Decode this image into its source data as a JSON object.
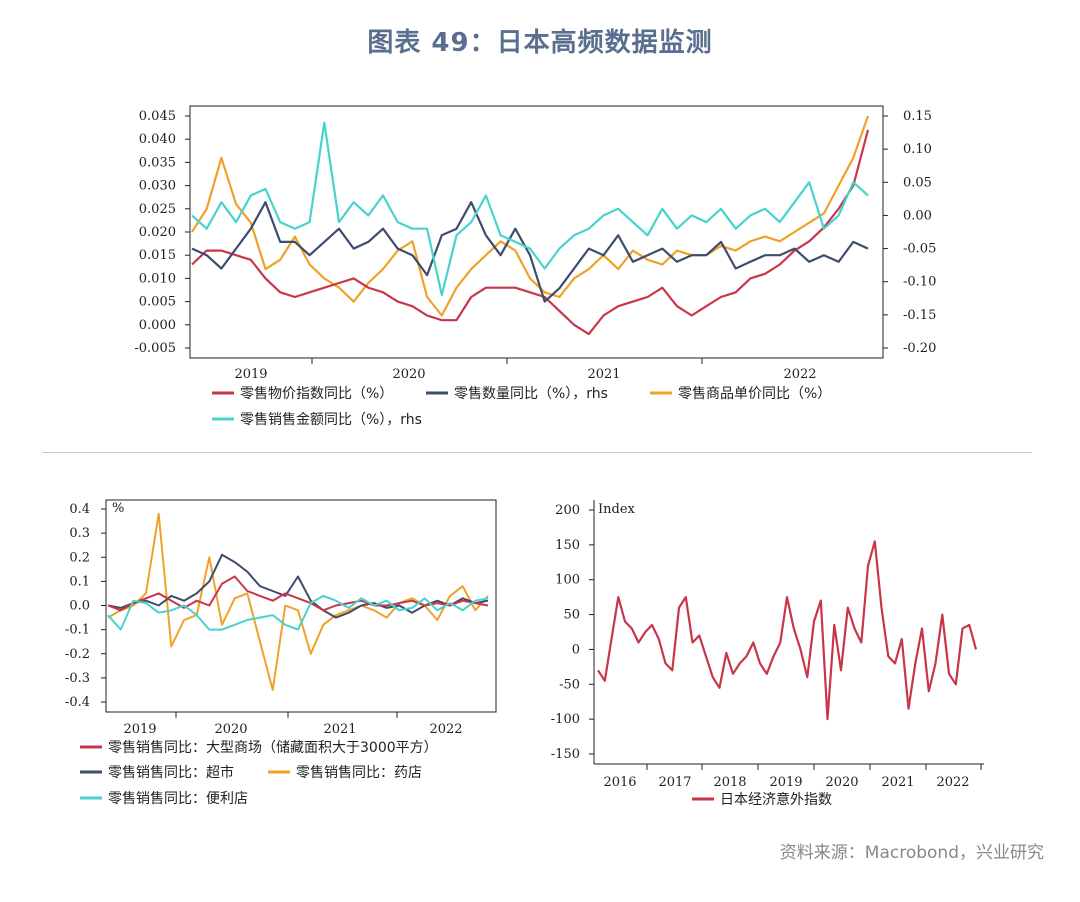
{
  "title": "图表 49：日本高频数据监测",
  "source": "资料来源：Macrobond，兴业研究",
  "colors": {
    "red": "#c8364a",
    "navy": "#3e4d6e",
    "orange": "#f0a12a",
    "cyan": "#47d3cc"
  },
  "chart_data": [
    {
      "type": "line",
      "x_ticks": [
        "2019",
        "2020",
        "2021",
        "2022"
      ],
      "y_left_ticks": [
        "0.045",
        "0.040",
        "0.035",
        "0.030",
        "0.025",
        "0.020",
        "0.015",
        "0.010",
        "0.005",
        "0.000",
        "-0.005"
      ],
      "y_right_ticks": [
        "0.15",
        "0.10",
        "0.05",
        "0.00",
        "-0.05",
        "-0.10",
        "-0.15",
        "-0.20"
      ],
      "ylim_left": [
        -0.005,
        0.045
      ],
      "ylim_right": [
        -0.2,
        0.15
      ],
      "legend": [
        "零售物价指数同比（%）",
        "零售数量同比（%），rhs",
        "零售商品单价同比（%）",
        "零售销售金额同比（%），rhs"
      ],
      "series": [
        {
          "name": "零售物价指数同比（%）",
          "axis": "left",
          "color": "red",
          "values": [
            0.013,
            0.016,
            0.016,
            0.015,
            0.014,
            0.01,
            0.007,
            0.006,
            0.007,
            0.008,
            0.009,
            0.01,
            0.008,
            0.007,
            0.005,
            0.004,
            0.002,
            0.001,
            0.001,
            0.006,
            0.008,
            0.008,
            0.008,
            0.007,
            0.006,
            0.003,
            0.0,
            -0.002,
            0.002,
            0.004,
            0.005,
            0.006,
            0.008,
            0.004,
            0.002,
            0.004,
            0.006,
            0.007,
            0.01,
            0.011,
            0.013,
            0.016,
            0.018,
            0.021,
            0.025,
            0.03,
            0.042
          ]
        },
        {
          "name": "零售数量同比（%），rhs",
          "axis": "right",
          "color": "navy",
          "values": [
            -0.05,
            -0.06,
            -0.08,
            -0.05,
            -0.02,
            0.02,
            -0.04,
            -0.04,
            -0.06,
            -0.04,
            -0.02,
            -0.05,
            -0.04,
            -0.02,
            -0.05,
            -0.06,
            -0.09,
            -0.03,
            -0.02,
            0.02,
            -0.03,
            -0.06,
            -0.02,
            -0.06,
            -0.13,
            -0.11,
            -0.08,
            -0.05,
            -0.06,
            -0.03,
            -0.07,
            -0.06,
            -0.05,
            -0.07,
            -0.06,
            -0.06,
            -0.04,
            -0.08,
            -0.07,
            -0.06,
            -0.06,
            -0.05,
            -0.07,
            -0.06,
            -0.07,
            -0.04,
            -0.05
          ]
        },
        {
          "name": "零售商品单价同比（%）",
          "axis": "left",
          "color": "orange",
          "values": [
            0.02,
            0.025,
            0.036,
            0.026,
            0.022,
            0.012,
            0.014,
            0.019,
            0.013,
            0.01,
            0.008,
            0.005,
            0.009,
            0.012,
            0.016,
            0.018,
            0.006,
            0.002,
            0.008,
            0.012,
            0.015,
            0.018,
            0.016,
            0.01,
            0.007,
            0.006,
            0.01,
            0.012,
            0.015,
            0.012,
            0.016,
            0.014,
            0.013,
            0.016,
            0.015,
            0.015,
            0.017,
            0.016,
            0.018,
            0.019,
            0.018,
            0.02,
            0.022,
            0.024,
            0.03,
            0.036,
            0.045
          ]
        },
        {
          "name": "零售销售金额同比（%），rhs",
          "axis": "right",
          "color": "cyan",
          "values": [
            0.0,
            -0.02,
            0.02,
            -0.01,
            0.03,
            0.04,
            -0.01,
            -0.02,
            -0.01,
            0.14,
            -0.01,
            0.02,
            0.0,
            0.03,
            -0.01,
            -0.02,
            -0.02,
            -0.12,
            -0.03,
            -0.01,
            0.03,
            -0.03,
            -0.04,
            -0.05,
            -0.08,
            -0.05,
            -0.03,
            -0.02,
            0.0,
            0.01,
            -0.01,
            -0.03,
            0.01,
            -0.02,
            0.0,
            -0.01,
            0.01,
            -0.02,
            0.0,
            0.01,
            -0.01,
            0.02,
            0.05,
            -0.02,
            0.0,
            0.05,
            0.03
          ]
        }
      ]
    },
    {
      "type": "line",
      "unit_label": "%",
      "x_ticks": [
        "2019",
        "2020",
        "2021",
        "2022"
      ],
      "y_ticks": [
        "0.4",
        "0.3",
        "0.2",
        "0.1",
        "0.0",
        "-0.1",
        "-0.2",
        "-0.3",
        "-0.4"
      ],
      "ylim": [
        -0.4,
        0.4
      ],
      "legend": [
        "零售销售同比：大型商场（储藏面积大于3000平方）",
        "零售销售同比：超市",
        "零售销售同比：药店",
        "零售销售同比：便利店"
      ],
      "series": [
        {
          "name": "零售销售同比：大型商场（储藏面积大于3000平方）",
          "color": "red",
          "values": [
            0.0,
            -0.02,
            0.01,
            0.03,
            0.05,
            0.02,
            -0.01,
            0.02,
            0.0,
            0.09,
            0.12,
            0.06,
            0.04,
            0.02,
            0.05,
            0.03,
            0.01,
            -0.02,
            0.0,
            0.01,
            0.02,
            0.0,
            0.0,
            0.01,
            0.02,
            0.0,
            0.01,
            0.0,
            0.02,
            0.01,
            0.0
          ]
        },
        {
          "name": "零售销售同比：超市",
          "color": "navy",
          "values": [
            0.0,
            -0.01,
            0.01,
            0.02,
            0.0,
            0.04,
            0.02,
            0.05,
            0.1,
            0.21,
            0.18,
            0.14,
            0.08,
            0.06,
            0.04,
            0.12,
            0.02,
            -0.02,
            -0.05,
            -0.03,
            0.0,
            0.01,
            -0.01,
            0.0,
            -0.03,
            0.0,
            0.02,
            0.0,
            0.03,
            0.01,
            0.02
          ]
        },
        {
          "name": "零售销售同比：药店",
          "color": "orange",
          "values": [
            -0.05,
            -0.02,
            0.0,
            0.05,
            0.38,
            -0.17,
            -0.06,
            -0.04,
            0.2,
            -0.08,
            0.03,
            0.05,
            -0.15,
            -0.35,
            0.0,
            -0.02,
            -0.2,
            -0.08,
            -0.04,
            -0.02,
            0.0,
            -0.02,
            -0.05,
            0.01,
            0.03,
            0.0,
            -0.06,
            0.04,
            0.08,
            -0.02,
            0.04
          ]
        },
        {
          "name": "零售销售同比：便利店",
          "color": "cyan",
          "values": [
            -0.04,
            -0.1,
            0.02,
            0.01,
            -0.03,
            -0.02,
            0.0,
            -0.04,
            -0.1,
            -0.1,
            -0.08,
            -0.06,
            -0.05,
            -0.04,
            -0.08,
            -0.1,
            0.01,
            0.04,
            0.02,
            -0.01,
            0.03,
            0.0,
            0.02,
            -0.02,
            -0.01,
            0.03,
            -0.02,
            0.01,
            -0.02,
            0.02,
            0.03
          ]
        }
      ]
    },
    {
      "type": "line",
      "unit_label": "Index",
      "x_ticks": [
        "2016",
        "2017",
        "2018",
        "2019",
        "2020",
        "2021",
        "2022"
      ],
      "y_ticks": [
        "200",
        "150",
        "100",
        "50",
        "0",
        "-50",
        "-100",
        "-150"
      ],
      "ylim": [
        -150,
        200
      ],
      "legend": [
        "日本经济意外指数"
      ],
      "series": [
        {
          "name": "日本经济意外指数",
          "color": "red",
          "values": [
            -30,
            -45,
            15,
            75,
            40,
            30,
            10,
            25,
            35,
            15,
            -20,
            -30,
            60,
            75,
            10,
            20,
            -10,
            -40,
            -55,
            -5,
            -35,
            -20,
            -10,
            10,
            -20,
            -35,
            -10,
            10,
            75,
            30,
            0,
            -40,
            40,
            70,
            -100,
            35,
            -30,
            60,
            30,
            10,
            120,
            155,
            60,
            -10,
            -20,
            15,
            -85,
            -20,
            30,
            -60,
            -20,
            50,
            -35,
            -50,
            30,
            35,
            0
          ]
        }
      ]
    }
  ]
}
